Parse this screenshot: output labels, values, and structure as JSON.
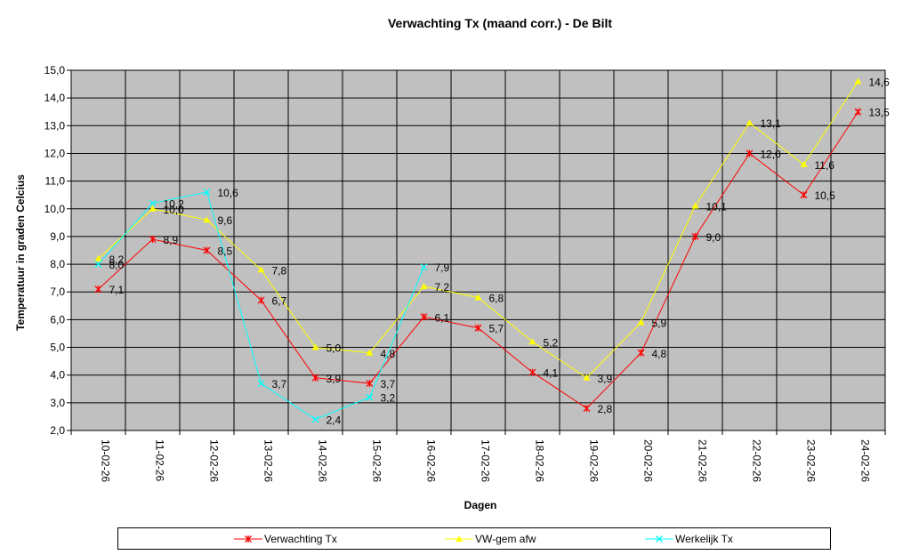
{
  "chart_data": {
    "type": "line",
    "title": "Verwachting Tx (maand corr.) - De Bilt",
    "xlabel": "Dagen",
    "ylabel": "Temperatuur in graden Celcius",
    "ylim": [
      2.0,
      15.0
    ],
    "ytick_step": 1.0,
    "grid": true,
    "legend_position": "bottom",
    "categories": [
      "10-02-26",
      "11-02-26",
      "12-02-26",
      "13-02-26",
      "14-02-26",
      "15-02-26",
      "16-02-26",
      "17-02-26",
      "18-02-26",
      "19-02-26",
      "20-02-26",
      "21-02-26",
      "22-02-26",
      "23-02-26",
      "24-02-26"
    ],
    "series": [
      {
        "name": "Verwachting Tx",
        "color": "#ff0000",
        "marker": "star",
        "values": [
          7.1,
          8.9,
          8.5,
          6.7,
          3.9,
          3.7,
          6.1,
          5.7,
          4.1,
          2.8,
          4.8,
          9.0,
          12.0,
          10.5,
          13.5
        ]
      },
      {
        "name": "VW-gem afw",
        "color": "#ffff00",
        "marker": "triangle",
        "values": [
          8.2,
          10.0,
          9.6,
          7.8,
          5.0,
          4.8,
          7.2,
          6.8,
          5.2,
          3.9,
          5.9,
          10.1,
          13.1,
          11.6,
          14.6
        ]
      },
      {
        "name": "Werkelijk Tx",
        "color": "#00ffff",
        "marker": "x",
        "values": [
          8.0,
          10.2,
          10.6,
          3.7,
          2.4,
          3.2,
          7.9,
          null,
          null,
          null,
          null,
          null,
          null,
          null,
          null
        ]
      }
    ],
    "plot_background": "#c0c0c0"
  }
}
